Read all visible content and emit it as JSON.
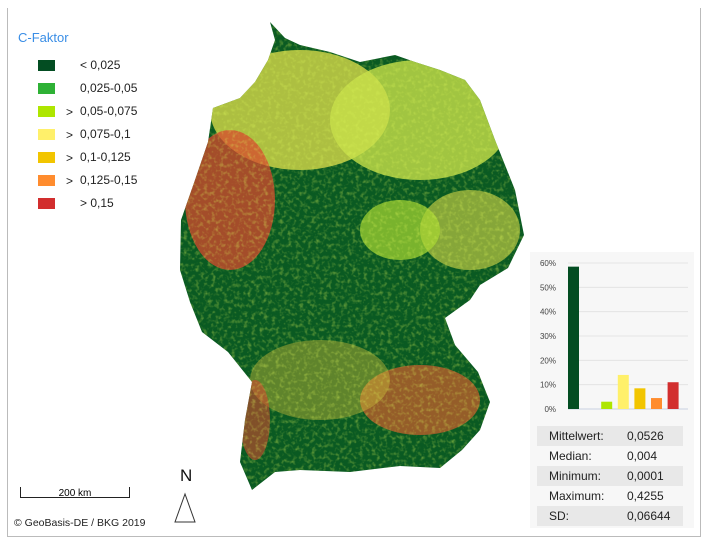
{
  "legend": {
    "title": "C-Faktor",
    "items": [
      {
        "prefix": "",
        "label": "< 0,025",
        "color": "#034d22"
      },
      {
        "prefix": "",
        "label": "0,025-0,05",
        "color": "#2eb135"
      },
      {
        "prefix": ">",
        "label": "0,05-0,075",
        "color": "#aee600"
      },
      {
        "prefix": ">",
        "label": "0,075-0,1",
        "color": "#fff06a"
      },
      {
        "prefix": ">",
        "label": "0,1-0,125",
        "color": "#f2c500"
      },
      {
        "prefix": ">",
        "label": "0,125-0,15",
        "color": "#ff8c2e"
      },
      {
        "prefix": "",
        "label": "> 0,15",
        "color": "#d22e2e"
      }
    ]
  },
  "chart_data": {
    "type": "bar",
    "categories": [
      "< 0,025",
      "0,025-0,05",
      "> 0,05-0,075",
      "> 0,075-0,1",
      "> 0,1-0,125",
      "> 0,125-0,15",
      "> 0,15"
    ],
    "values": [
      58.5,
      0,
      3,
      14,
      8.5,
      4.5,
      11
    ],
    "ylim": [
      0,
      60
    ],
    "yticks": [
      "0%",
      "10%",
      "20%",
      "30%",
      "40%",
      "50%",
      "60%"
    ],
    "grid": true
  },
  "stats": [
    {
      "label": "Mittelwert:",
      "value": "0,0526"
    },
    {
      "label": "Median:",
      "value": "0,004"
    },
    {
      "label": "Minimum:",
      "value": "0,0001"
    },
    {
      "label": "Maximum:",
      "value": "0,4255"
    },
    {
      "label": "SD:",
      "value": "0,06644"
    }
  ],
  "scale_label": "200 km",
  "north_label": "N",
  "copyright": "© GeoBasis-DE / BKG 2019"
}
